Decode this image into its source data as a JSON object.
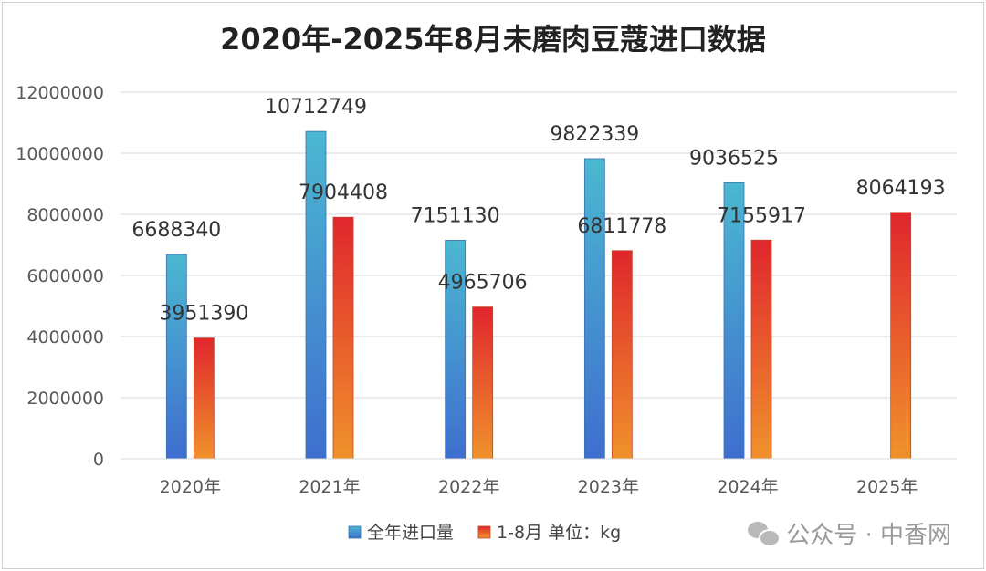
{
  "chart_data": {
    "type": "bar",
    "title": "2020年-2025年8月未磨肉豆蔻进口数据",
    "categories": [
      "2020年",
      "2021年",
      "2022年",
      "2023年",
      "2024年",
      "2025年"
    ],
    "series": [
      {
        "name": "全年进口量",
        "values": [
          6688340,
          10712749,
          7151130,
          9822339,
          9036525,
          null
        ],
        "color_top": "#4bb8d0",
        "color_bottom": "#3f6ecf"
      },
      {
        "name": "1-8月 单位：kg",
        "values": [
          3951390,
          7904408,
          4965706,
          6811778,
          7155917,
          8064193
        ],
        "color_top": "#e0262d",
        "color_bottom": "#f0922c"
      }
    ],
    "ylim": [
      0,
      12000000
    ],
    "yticks": [
      "0",
      "2000000",
      "4000000",
      "6000000",
      "8000000",
      "10000000",
      "12000000"
    ],
    "data_labels": [
      [
        "6688340",
        "10712749",
        "7151130",
        "9822339",
        "9036525",
        ""
      ],
      [
        "3951390",
        "7904408",
        "4965706",
        "6811778",
        "7155917",
        "8064193"
      ]
    ],
    "grid": true,
    "legend_position": "bottom"
  },
  "watermark": {
    "icon": "wechat-icon",
    "text": "公众号 · 中香网"
  }
}
